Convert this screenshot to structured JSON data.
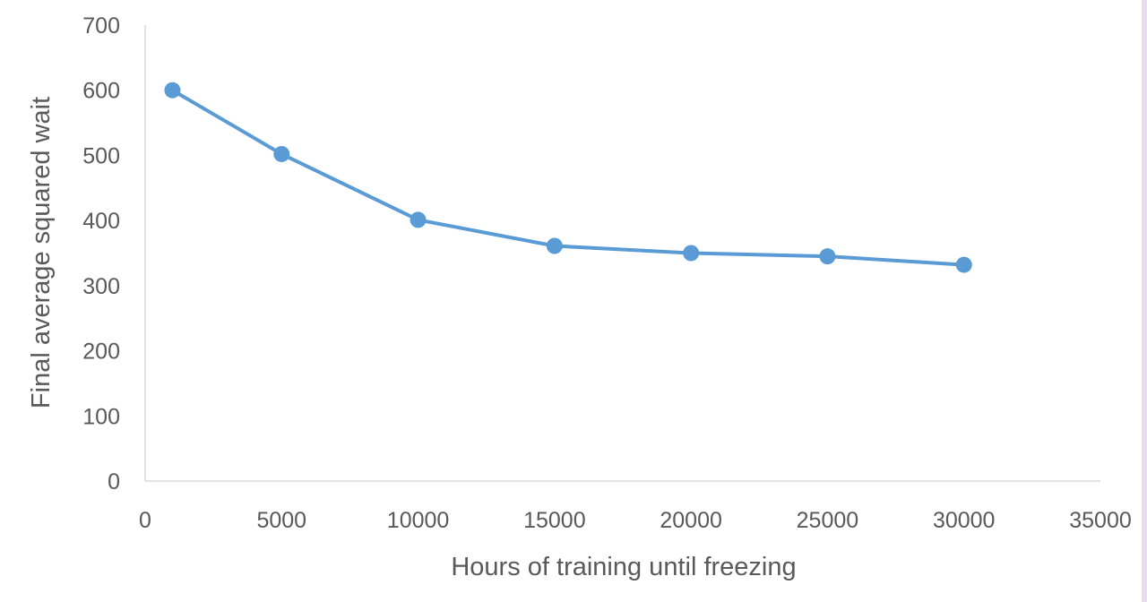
{
  "colors": {
    "series": "#5b9bd5",
    "axis": "#d9d9d9",
    "text": "#595959"
  },
  "chart_data": {
    "type": "line",
    "title": "",
    "xlabel": "Hours of training until freezing",
    "ylabel": "Final average squared wait",
    "xlim": [
      0,
      35000
    ],
    "ylim": [
      0,
      700
    ],
    "xticks": [
      0,
      5000,
      10000,
      15000,
      20000,
      25000,
      30000,
      35000
    ],
    "yticks": [
      0,
      100,
      200,
      300,
      400,
      500,
      600,
      700
    ],
    "grid": false,
    "legend": "none",
    "series": [
      {
        "x": [
          1000,
          5000,
          10000,
          15000,
          20000,
          25000,
          30000
        ],
        "y": [
          600,
          502,
          401,
          361,
          350,
          345,
          332
        ]
      }
    ]
  }
}
